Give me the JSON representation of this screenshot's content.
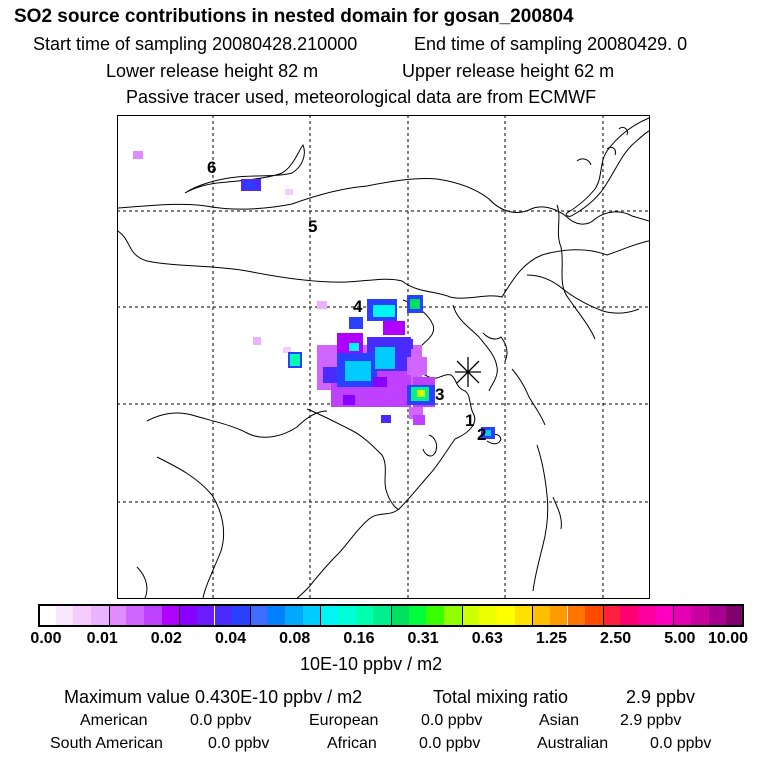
{
  "header": {
    "title": "SO2 source contributions in nested domain for gosan_200804",
    "start_label": "Start time of sampling 20080428.210000",
    "end_label": "End time of sampling 20080429.     0",
    "lower_height": "Lower release height   82 m",
    "upper_height": "Upper release height   62 m",
    "note": "Passive tracer used, meteorological data are from ECMWF"
  },
  "map": {
    "source_labels": [
      "6",
      "5",
      "4",
      "3",
      "1",
      "2"
    ],
    "receptor_marker": "gosan-asterisk"
  },
  "colorbar": {
    "ticks": [
      "0.00",
      "0.01",
      "0.02",
      "0.04",
      "0.08",
      "0.16",
      "0.31",
      "0.63",
      "1.25",
      "2.50",
      "5.00",
      "10.00"
    ],
    "colors": [
      "#ffffff",
      "#fbe6ff",
      "#f4ccff",
      "#ebb3ff",
      "#e08cff",
      "#d066ff",
      "#c040ff",
      "#b000ff",
      "#8800ff",
      "#6a1bff",
      "#4a2bff",
      "#2a40ff",
      "#3f6bff",
      "#0080ff",
      "#00a8ff",
      "#00ccff",
      "#00f5f5",
      "#00ffd8",
      "#00ffb0",
      "#00f090",
      "#00e060",
      "#00ff3a",
      "#3aff00",
      "#90ff00",
      "#ccff00",
      "#f0ff00",
      "#ffff00",
      "#ffe000",
      "#ffbf00",
      "#ff9a00",
      "#ff7500",
      "#ff4a00",
      "#ff2040",
      "#ff0070",
      "#ff00a0",
      "#ff00c0",
      "#e600b4",
      "#c800a0",
      "#a80090",
      "#800070"
    ],
    "unit": "10E-10 ppbv / m2"
  },
  "summary": {
    "max_label": "Maximum value  0.430E-10 ppbv / m2",
    "total_label": "Total mixing ratio",
    "total_value": "2.9 ppbv",
    "regions": [
      {
        "name": "American",
        "value": "0.0 ppbv"
      },
      {
        "name": "European",
        "value": "0.0 ppbv"
      },
      {
        "name": "Asian",
        "value": "2.9 ppbv"
      },
      {
        "name": "South American",
        "value": "0.0 ppbv"
      },
      {
        "name": "African",
        "value": "0.0 ppbv"
      },
      {
        "name": "Australian",
        "value": "0.0 ppbv"
      }
    ]
  }
}
